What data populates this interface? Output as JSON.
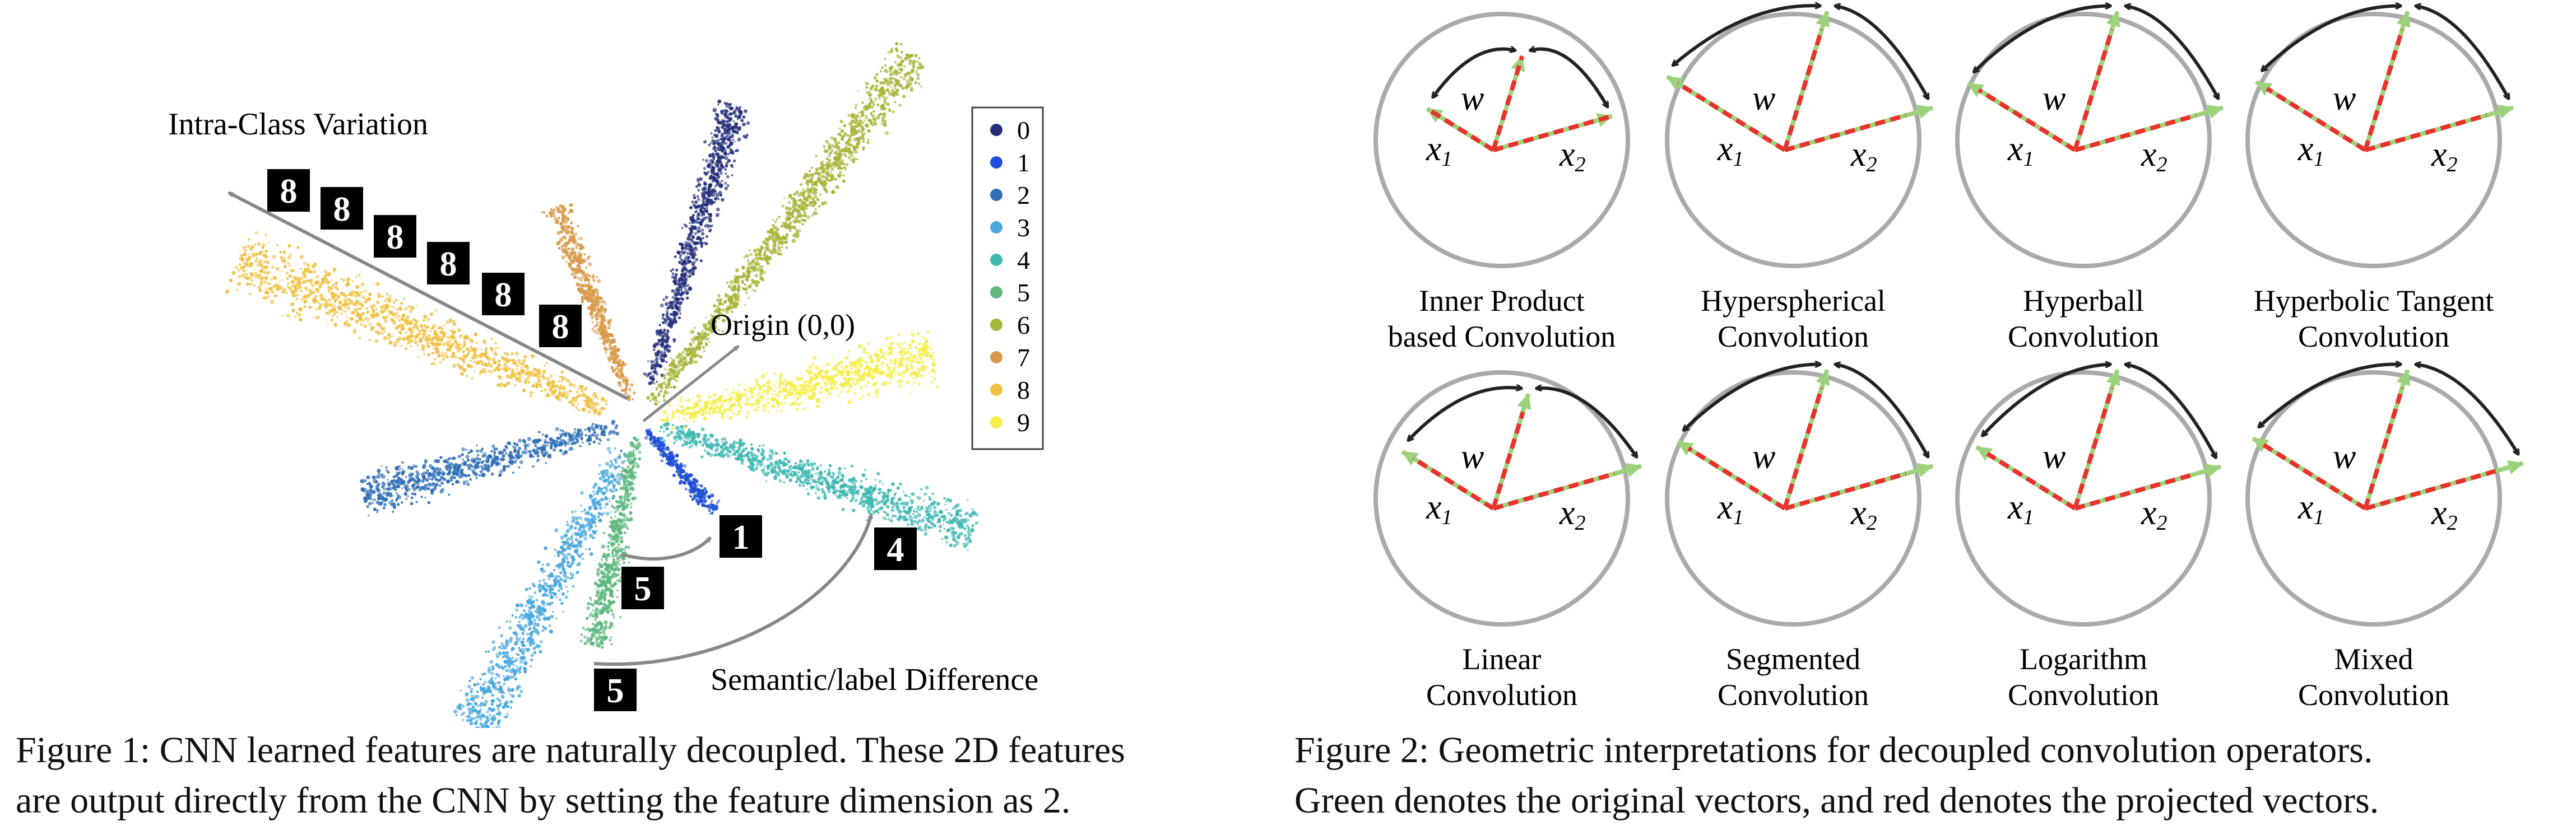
{
  "figure1": {
    "annotations": {
      "intra_class": "Intra-Class Variation",
      "origin": "Origin (0,0)",
      "semantic": "Semantic/label Difference"
    },
    "legend": [
      {
        "label": "0",
        "color": "#25307a"
      },
      {
        "label": "1",
        "color": "#1f4fd6"
      },
      {
        "label": "2",
        "color": "#2f6fb5"
      },
      {
        "label": "3",
        "color": "#4aa7dd"
      },
      {
        "label": "4",
        "color": "#3fb8b3"
      },
      {
        "label": "5",
        "color": "#5fb87f"
      },
      {
        "label": "6",
        "color": "#a8b43a"
      },
      {
        "label": "7",
        "color": "#d89a4a"
      },
      {
        "label": "8",
        "color": "#f0c040"
      },
      {
        "label": "9",
        "color": "#f5ee4a"
      }
    ],
    "digit_thumbs": [
      "8",
      "8",
      "8",
      "8",
      "8",
      "8",
      "1",
      "5",
      "4",
      "5"
    ],
    "caption_lines": [
      "Figure 1: CNN learned features are naturally decoupled. These 2D features",
      "are output directly from the CNN by setting the feature dimension as 2."
    ]
  },
  "figure2": {
    "panels": [
      {
        "name_lines": [
          "Inner Product",
          "based Convolution"
        ]
      },
      {
        "name_lines": [
          "Hyperspherical",
          "Convolution"
        ]
      },
      {
        "name_lines": [
          "Hyperball",
          "Convolution"
        ]
      },
      {
        "name_lines": [
          "Hyperbolic Tangent",
          "Convolution"
        ]
      },
      {
        "name_lines": [
          "Linear",
          "Convolution"
        ]
      },
      {
        "name_lines": [
          "Segmented",
          "Convolution"
        ]
      },
      {
        "name_lines": [
          "Logarithm",
          "Convolution"
        ]
      },
      {
        "name_lines": [
          "Mixed",
          "Convolution"
        ]
      }
    ],
    "vector_labels": {
      "w": "w",
      "x1": "x",
      "x1_sub": "1",
      "x2": "x",
      "x2_sub": "2"
    },
    "colors": {
      "original": "#9cd37a",
      "projected": "#e8332c",
      "circle": "#aaaaaa",
      "arc": "#222222"
    },
    "caption_lines": [
      "Figure 2:  Geometric interpretations for decoupled convolution operators.",
      "Green denotes the original vectors, and red denotes the projected vectors."
    ]
  }
}
